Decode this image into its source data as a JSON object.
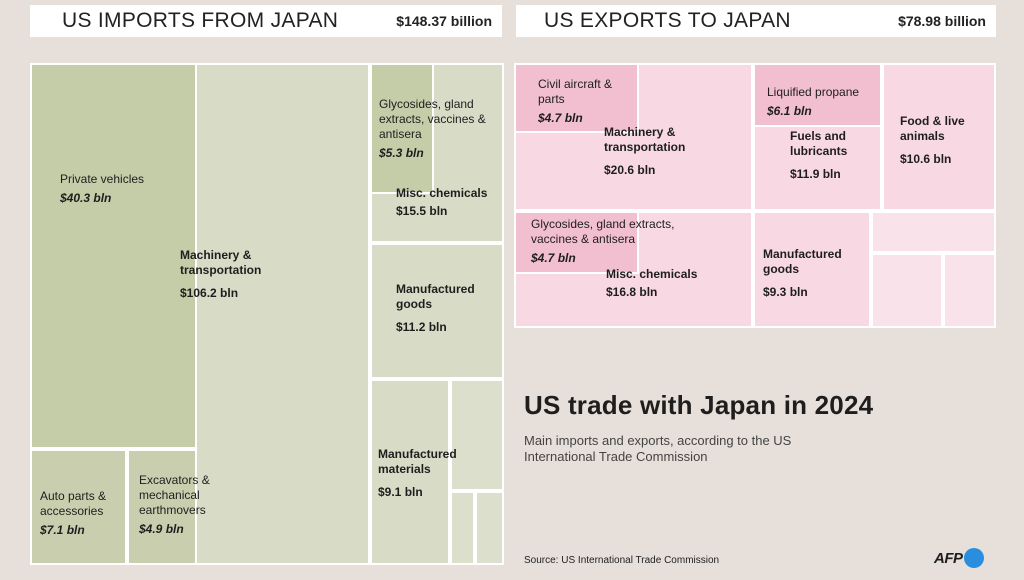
{
  "headers": {
    "imports": {
      "title": "US IMPORTS FROM JAPAN",
      "total": "$148.37 billion"
    },
    "exports": {
      "title": "US EXPORTS TO JAPAN",
      "total": "$78.98 billion"
    }
  },
  "title": "US trade with Japan in 2024",
  "subtitle": "Main imports and exports, according to the US International Trade Commission",
  "source": "Source: US International Trade Commission",
  "logo": "AFP",
  "colors": {
    "imports_category": "#d8dcc6",
    "imports_highlight": "#c5cca8",
    "imports_small": "#dcdfcc",
    "exports_category": "#f8d8e3",
    "exports_highlight": "#f2bfd1",
    "exports_small": "#fae2ea",
    "logo_dot": "#2a8ee0"
  },
  "chart_data": [
    {
      "type": "treemap",
      "title": "US IMPORTS FROM JAPAN",
      "total": "$148.37 billion",
      "items": [
        {
          "name": "Machinery & transportation",
          "value": 106.2,
          "value_label": "$106.2 bln"
        },
        {
          "name": "Private vehicles",
          "value": 40.3,
          "value_label": "$40.3 bln",
          "parent": "Machinery & transportation"
        },
        {
          "name": "Auto parts & accessories",
          "value": 7.1,
          "value_label": "$7.1 bln",
          "parent": "Machinery & transportation"
        },
        {
          "name": "Excavators & mechanical earthmovers",
          "value": 4.9,
          "value_label": "$4.9 bln",
          "parent": "Machinery & transportation"
        },
        {
          "name": "Misc. chemicals",
          "value": 15.5,
          "value_label": "$15.5 bln"
        },
        {
          "name": "Glycosides, gland extracts, vaccines & antisera",
          "value": 5.3,
          "value_label": "$5.3 bln",
          "parent": "Misc. chemicals"
        },
        {
          "name": "Manufactured goods",
          "value": 11.2,
          "value_label": "$11.2 bln"
        },
        {
          "name": "Manufactured materials",
          "value": 9.1,
          "value_label": "$9.1 bln"
        }
      ]
    },
    {
      "type": "treemap",
      "title": "US EXPORTS TO JAPAN",
      "total": "$78.98 billion",
      "items": [
        {
          "name": "Machinery & transportation",
          "value": 20.6,
          "value_label": "$20.6 bln"
        },
        {
          "name": "Civil aircraft & parts",
          "value": 4.7,
          "value_label": "$4.7 bln",
          "parent": "Machinery & transportation"
        },
        {
          "name": "Fuels and lubricants",
          "value": 11.9,
          "value_label": "$11.9 bln"
        },
        {
          "name": "Liquified propane",
          "value": 6.1,
          "value_label": "$6.1 bln",
          "parent": "Fuels and lubricants"
        },
        {
          "name": "Food & live animals",
          "value": 10.6,
          "value_label": "$10.6 bln"
        },
        {
          "name": "Misc. chemicals",
          "value": 16.8,
          "value_label": "$16.8 bln"
        },
        {
          "name": "Glycosides, gland extracts, vaccines & antisera",
          "value": 4.7,
          "value_label": "$4.7 bln",
          "parent": "Misc. chemicals"
        },
        {
          "name": "Manufactured goods",
          "value": 9.3,
          "value_label": "$9.3 bln"
        }
      ]
    }
  ]
}
